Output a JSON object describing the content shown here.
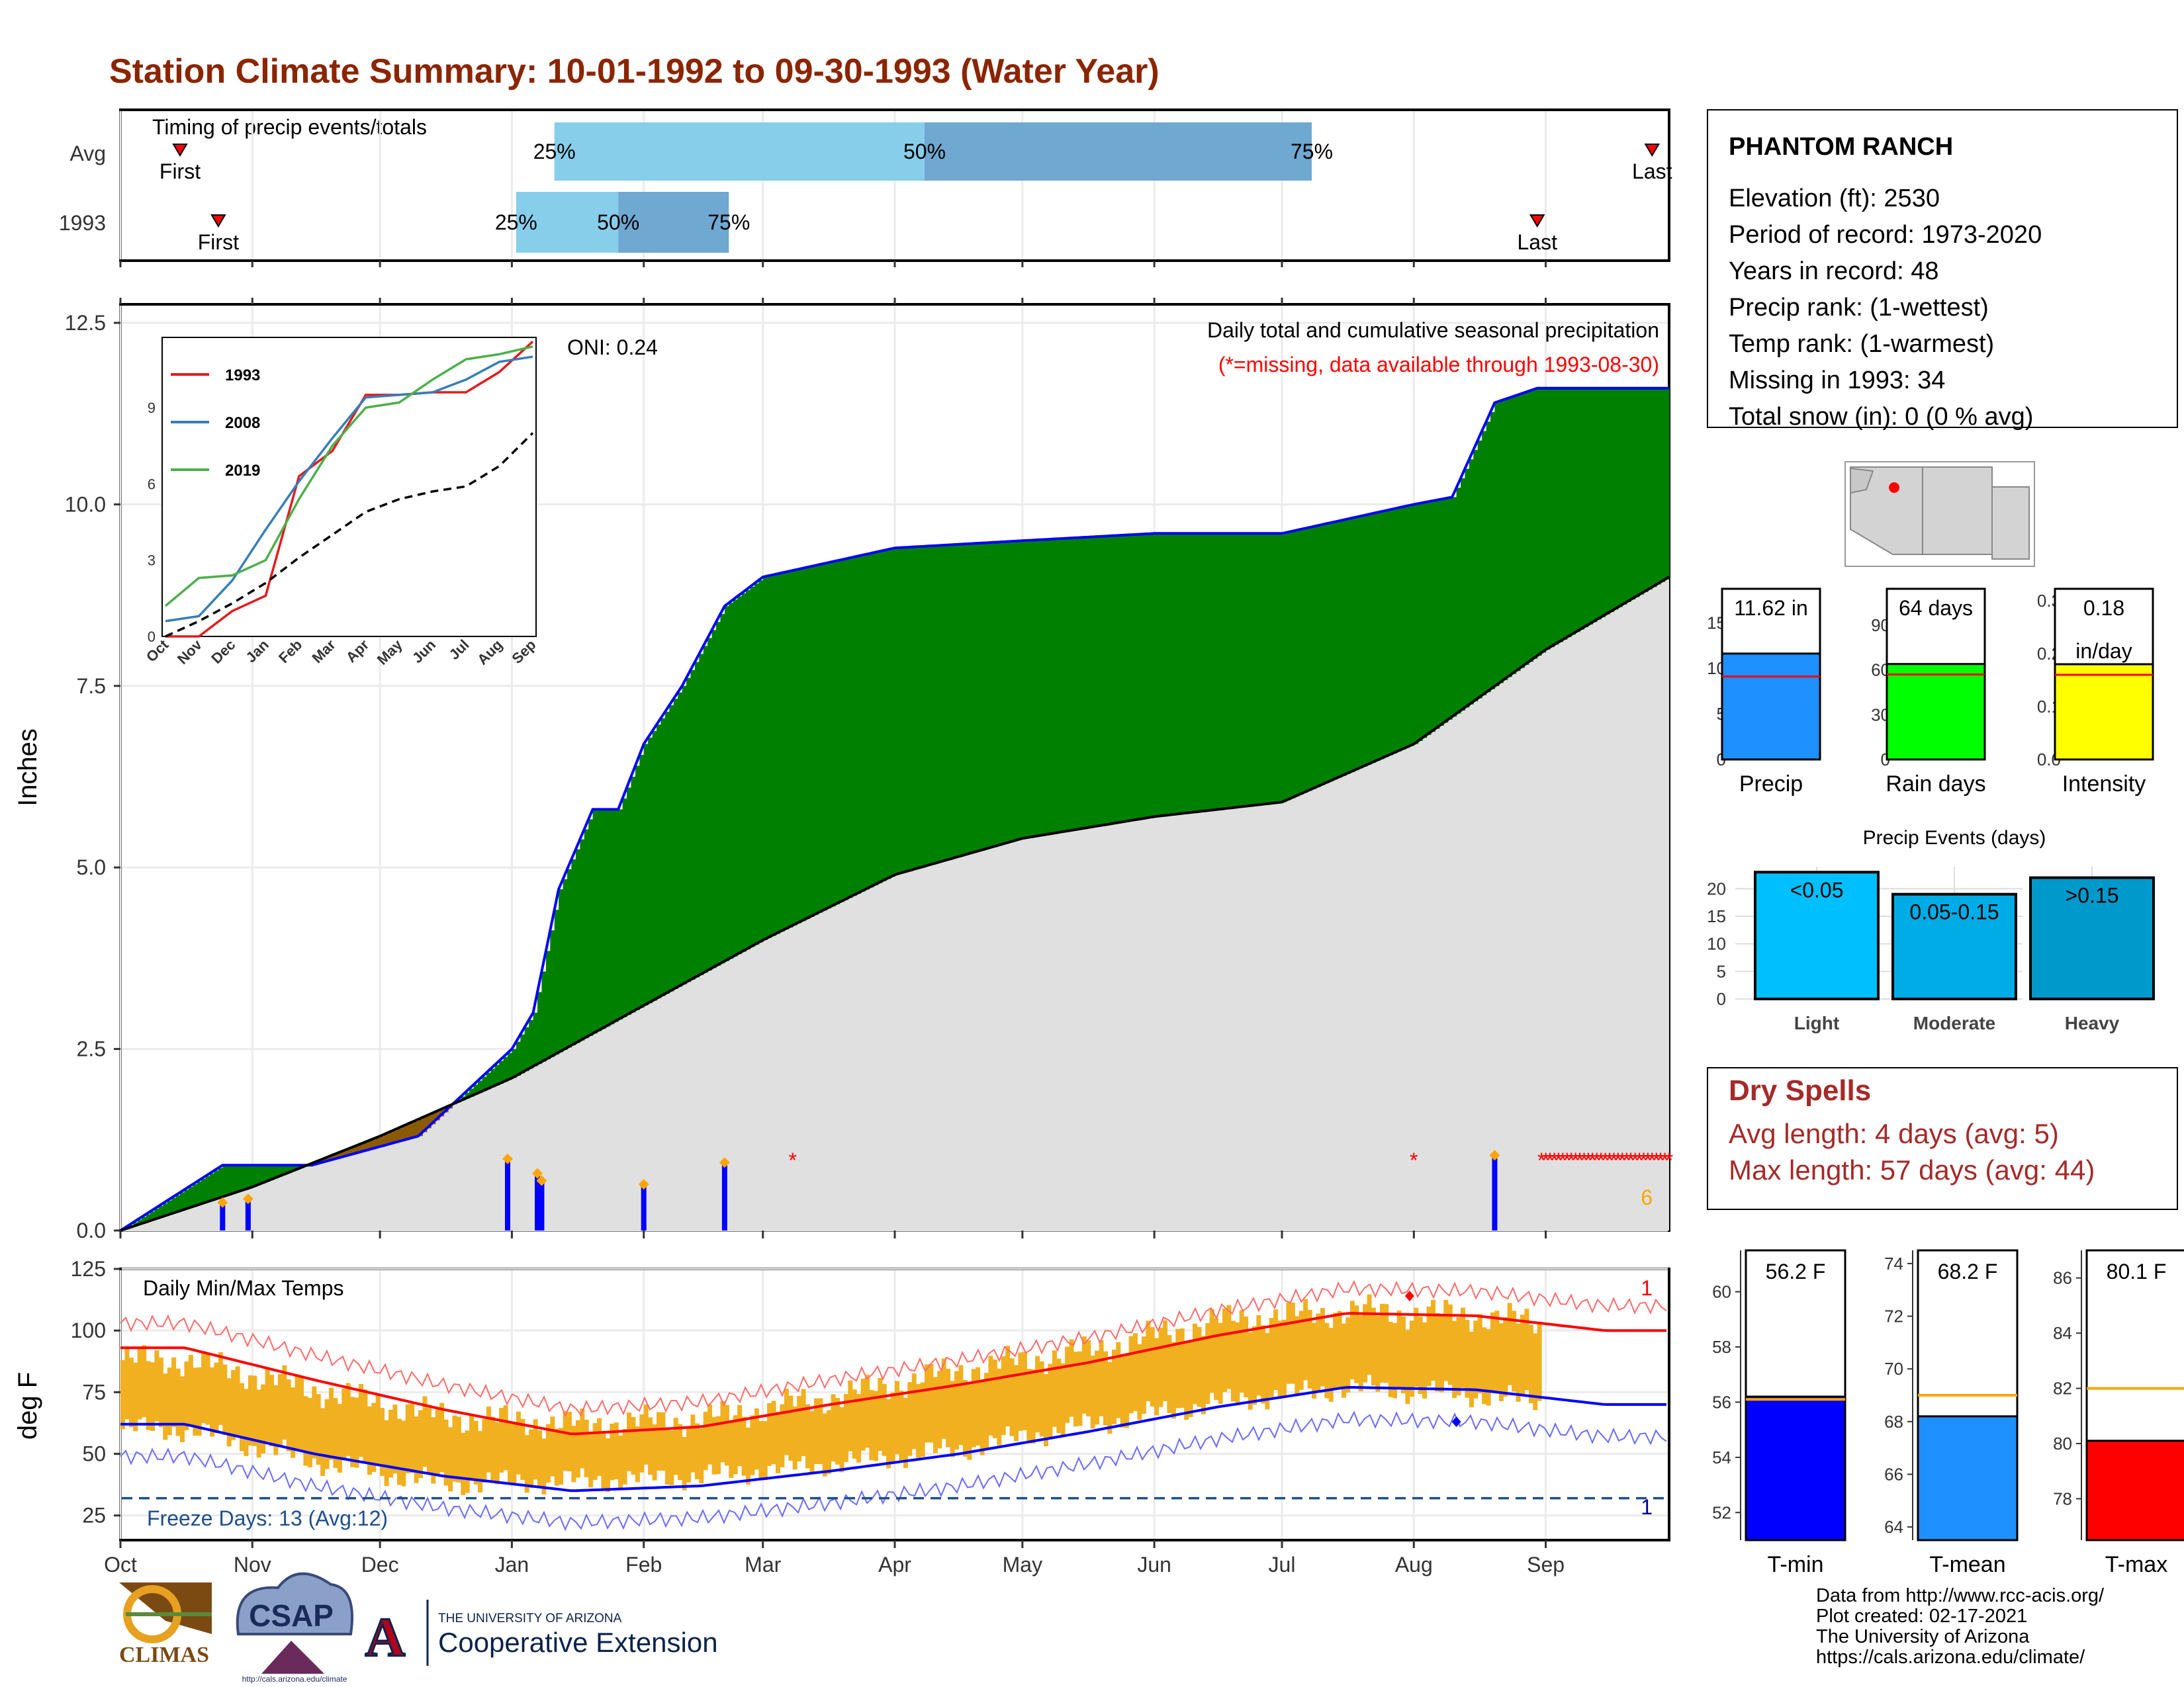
{
  "title": "Station Climate Summary: 10-01-1992 to 09-30-1993 (Water Year)",
  "months": [
    "Oct",
    "Nov",
    "Dec",
    "Jan",
    "Feb",
    "Mar",
    "Apr",
    "May",
    "Jun",
    "Jul",
    "Aug",
    "Sep"
  ],
  "timing": {
    "title": "Timing of precip events/totals",
    "rows": [
      "Avg",
      "1993"
    ],
    "first_label": "First",
    "last_label": "Last",
    "avg": {
      "first": "1992-10-15",
      "p25": "1993-01-11",
      "p50": "1993-04-08",
      "p75": "1993-07-08",
      "last": "1993-09-26"
    },
    "y1993": {
      "first": "1992-10-24",
      "p25": "1993-01-02",
      "p50": "1993-01-26",
      "p75": "1993-02-21",
      "last": "1993-08-30"
    },
    "labels": {
      "p25": "25%",
      "p50": "50%",
      "p75": "75%"
    }
  },
  "precip_panel": {
    "ylabel": "Inches",
    "yticks": [
      "0.0",
      "2.5",
      "5.0",
      "7.5",
      "10.0",
      "12.5"
    ],
    "heading": "Daily total and cumulative seasonal precipitation",
    "missing_note": "(*=missing, data available through 1993-08-30)",
    "oni": "ONI: 0.24",
    "corner_count": "6"
  },
  "inset": {
    "series": [
      "1993",
      "2008",
      "2019"
    ],
    "colors": [
      "#e41a1c",
      "#377eb8",
      "#4daf4a"
    ],
    "yticks": [
      "0",
      "3",
      "6",
      "9"
    ],
    "xticks": [
      "Oct",
      "Nov",
      "Dec",
      "Jan",
      "Feb",
      "Mar",
      "Apr",
      "May",
      "Jun",
      "Jul",
      "Aug",
      "Sep"
    ]
  },
  "temp_panel": {
    "ylabel": "deg F",
    "yticks": [
      "25",
      "50",
      "75",
      "100",
      "125"
    ],
    "heading": "Daily Min/Max Temps",
    "freeze": "Freeze Days: 13 (Avg:12)",
    "max_count": "1",
    "min_count": "1"
  },
  "station": {
    "name": "PHANTOM RANCH",
    "lines": [
      "Elevation (ft): 2530",
      "Period of record: 1973-2020",
      "Years in record: 48",
      "Precip rank:  (1-wettest)",
      "Temp rank:  (1-warmest)",
      "Missing in 1993: 34",
      "Total snow (in): 0 (0 % avg)"
    ]
  },
  "small_bars": [
    {
      "label": "Precip",
      "value_text": "11.62 in",
      "value": 11.62,
      "avg": 9.1,
      "max": 18,
      "yticks": [
        "0",
        "5",
        "10",
        "15"
      ],
      "color": "#1e90ff"
    },
    {
      "label": "Rain days",
      "value_text": "64 days",
      "value": 64,
      "avg": 57,
      "max": 110,
      "yticks": [
        "0",
        "30",
        "60",
        "90"
      ],
      "color": "#00ff00"
    },
    {
      "label": "Intensity",
      "value_text": "0.18",
      "value_text2": "in/day",
      "value": 0.18,
      "avg": 0.16,
      "max": 0.31,
      "yticks": [
        "0.0",
        "0.1",
        "0.2",
        "0.3"
      ],
      "color": "#ffff00"
    }
  ],
  "events": {
    "title": "Precip Events (days)",
    "yticks": [
      "0",
      "5",
      "10",
      "15",
      "20"
    ],
    "bars": [
      {
        "label": "Light",
        "range": "<0.05",
        "value": 23,
        "color": "#00bfff"
      },
      {
        "label": "Moderate",
        "range": "0.05-0.15",
        "value": 19,
        "color": "#00ace6"
      },
      {
        "label": "Heavy",
        "range": ">0.15",
        "value": 22,
        "color": "#0099cc"
      }
    ]
  },
  "dry_spells": {
    "title": "Dry Spells",
    "lines": [
      "Avg length: 4 days (avg: 5)",
      "Max length: 57 days (avg: 44)"
    ]
  },
  "temp_bars": [
    {
      "label": "T-min",
      "value_text": "56.2 F",
      "value": 56.2,
      "avg": 56.1,
      "lo": 51,
      "hi": 61.5,
      "yticks": [
        "52",
        "54",
        "56",
        "58",
        "60"
      ],
      "color": "#0000ff"
    },
    {
      "label": "T-mean",
      "value_text": "68.2 F",
      "value": 68.2,
      "avg": 69.0,
      "lo": 63.5,
      "hi": 74.5,
      "yticks": [
        "64",
        "66",
        "68",
        "70",
        "72",
        "74"
      ],
      "color": "#1e90ff"
    },
    {
      "label": "T-max",
      "value_text": "80.1 F",
      "value": 80.1,
      "avg": 82.0,
      "lo": 76.5,
      "hi": 87,
      "yticks": [
        "78",
        "80",
        "82",
        "84",
        "86"
      ],
      "color": "#ff0000"
    }
  ],
  "credits": [
    "Data from http://www.rcc-acis.org/",
    "Plot created: 02-17-2021",
    "The University of Arizona",
    "https://cals.arizona.edu/climate/"
  ],
  "logos": {
    "climas": "CLIMAS",
    "csap": "CSAP",
    "csap_url": "http://cals.arizona.edu/climate",
    "ua_small": "THE UNIVERSITY OF ARIZONA",
    "ua_big": "Cooperative Extension"
  },
  "chart_data": [
    {
      "type": "area",
      "title": "Daily total and cumulative seasonal precipitation",
      "ylabel": "Inches",
      "ylim": [
        0,
        12.5
      ],
      "series": [
        {
          "name": "1993",
          "dates": [
            "1992-10-01",
            "1992-10-25",
            "1992-11-15",
            "1992-12-10",
            "1993-01-01",
            "1993-01-06",
            "1993-01-12",
            "1993-01-20",
            "1993-01-26",
            "1993-02-01",
            "1993-02-10",
            "1993-02-20",
            "1993-03-01",
            "1993-04-01",
            "1993-05-01",
            "1993-06-01",
            "1993-07-01",
            "1993-08-01",
            "1993-08-10",
            "1993-08-20",
            "1993-08-30"
          ],
          "values": [
            0,
            0.9,
            0.9,
            1.3,
            2.5,
            3.0,
            4.7,
            5.8,
            5.8,
            6.7,
            7.5,
            8.6,
            9.0,
            9.4,
            9.5,
            9.6,
            9.6,
            10.0,
            10.1,
            11.4,
            11.6
          ]
        },
        {
          "name": "Avg",
          "dates": [
            "1992-10-01",
            "1992-11-01",
            "1992-12-01",
            "1993-01-01",
            "1993-02-01",
            "1993-03-01",
            "1993-04-01",
            "1993-05-01",
            "1993-06-01",
            "1993-07-01",
            "1993-08-01",
            "1993-09-01",
            "1993-09-30"
          ],
          "values": [
            0,
            0.6,
            1.3,
            2.1,
            3.1,
            4.0,
            4.9,
            5.4,
            5.7,
            5.9,
            6.7,
            8.0,
            9.0
          ]
        }
      ],
      "daily_precip": [
        {
          "date": "1992-10-25",
          "value": 0.35
        },
        {
          "date": "1992-10-31",
          "value": 0.4
        },
        {
          "date": "1992-12-31",
          "value": 0.95
        },
        {
          "date": "1993-01-07",
          "value": 0.75
        },
        {
          "date": "1993-01-08",
          "value": 0.65
        },
        {
          "date": "1993-02-01",
          "value": 0.6
        },
        {
          "date": "1993-02-20",
          "value": 0.9
        },
        {
          "date": "1993-08-20",
          "value": 1.0
        }
      ]
    },
    {
      "type": "line",
      "title": "Daily Min/Max Temps",
      "ylabel": "deg F",
      "ylim": [
        15,
        125
      ],
      "x": [
        "Oct",
        "Nov",
        "Dec",
        "Jan",
        "Feb",
        "Mar",
        "Apr",
        "May",
        "Jun",
        "Jul",
        "Aug",
        "Sep"
      ],
      "series": [
        {
          "name": "avg max",
          "values": [
            93,
            80,
            68,
            58,
            61,
            70,
            78,
            87,
            98,
            107,
            106,
            100
          ]
        },
        {
          "name": "avg min",
          "values": [
            62,
            50,
            41,
            35,
            37,
            43,
            50,
            59,
            69,
            77,
            76,
            70
          ]
        },
        {
          "name": "1993 max",
          "values": [
            88,
            76,
            65,
            62,
            64,
            73,
            84,
            92,
            104,
            108,
            106,
            100
          ]
        },
        {
          "name": "1993 min",
          "values": [
            60,
            47,
            38,
            39,
            41,
            46,
            52,
            62,
            71,
            77,
            74,
            68
          ]
        }
      ]
    },
    {
      "type": "line",
      "title": "",
      "x": [
        "Oct",
        "Nov",
        "Dec",
        "Jan",
        "Feb",
        "Mar",
        "Apr",
        "May",
        "Jun",
        "Jul",
        "Aug",
        "Sep"
      ],
      "ylim": [
        0,
        11.5
      ],
      "series": [
        {
          "name": "1993",
          "values": [
            0,
            0,
            1,
            1.6,
            6.3,
            7.3,
            9.5,
            9.5,
            9.6,
            9.6,
            10.4,
            11.6
          ]
        },
        {
          "name": "2008",
          "values": [
            0.6,
            0.8,
            2.2,
            4.2,
            6.1,
            7.8,
            9.4,
            9.5,
            9.6,
            10.1,
            10.8,
            11.0
          ]
        },
        {
          "name": "2019",
          "values": [
            1.2,
            2.3,
            2.4,
            3.0,
            5.4,
            7.5,
            9.0,
            9.2,
            10.1,
            10.9,
            11.1,
            11.4
          ]
        },
        {
          "name": "Avg",
          "values": [
            0,
            0.6,
            1.3,
            2.1,
            3.1,
            4.0,
            4.9,
            5.4,
            5.7,
            5.9,
            6.7,
            8.0
          ]
        }
      ]
    },
    {
      "type": "bar",
      "title": "Precip Events (days)",
      "categories": [
        "Light",
        "Moderate",
        "Heavy"
      ],
      "values": [
        23,
        19,
        22
      ],
      "ylim": [
        0,
        24
      ]
    }
  ]
}
